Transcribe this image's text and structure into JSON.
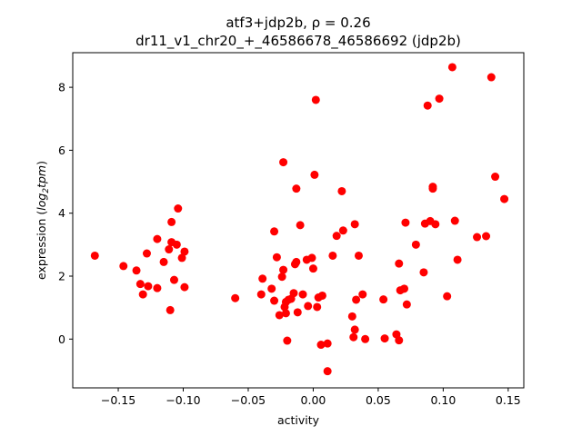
{
  "chart_data": {
    "type": "scatter",
    "title_line1": "atf3+jdp2b, ρ = 0.26",
    "title_line2": "dr11_v1_chr20_+_46586678_46586692 (jdp2b)",
    "xlabel": "activity",
    "ylabel_prefix": "expression (",
    "ylabel_italic": "log",
    "ylabel_sub": "2",
    "ylabel_italic2": "tpm",
    "ylabel_suffix": ")",
    "xlim": [
      -0.185,
      0.162
    ],
    "ylim": [
      -1.55,
      9.1
    ],
    "xticks": [
      -0.15,
      -0.1,
      -0.05,
      0.0,
      0.05,
      0.1,
      0.15
    ],
    "xtick_labels": [
      "−0.15",
      "−0.10",
      "−0.05",
      "0.00",
      "0.05",
      "0.10",
      "0.15"
    ],
    "yticks": [
      0,
      2,
      4,
      6,
      8
    ],
    "ytick_labels": [
      "0",
      "2",
      "4",
      "6",
      "8"
    ],
    "grid": false,
    "marker_color": "#ff0000",
    "series": [
      {
        "points": [
          [
            -0.168,
            2.65
          ],
          [
            -0.146,
            2.32
          ],
          [
            -0.136,
            2.18
          ],
          [
            -0.133,
            1.75
          ],
          [
            -0.131,
            1.42
          ],
          [
            -0.128,
            2.72
          ],
          [
            -0.127,
            1.68
          ],
          [
            -0.12,
            3.18
          ],
          [
            -0.12,
            1.62
          ],
          [
            -0.115,
            2.45
          ],
          [
            -0.111,
            2.85
          ],
          [
            -0.11,
            0.92
          ],
          [
            -0.109,
            3.08
          ],
          [
            -0.109,
            3.72
          ],
          [
            -0.107,
            1.88
          ],
          [
            -0.105,
            3.0
          ],
          [
            -0.104,
            4.15
          ],
          [
            -0.101,
            2.58
          ],
          [
            -0.099,
            2.78
          ],
          [
            -0.099,
            1.65
          ],
          [
            -0.06,
            1.3
          ],
          [
            -0.04,
            1.42
          ],
          [
            -0.039,
            1.92
          ],
          [
            -0.032,
            1.6
          ],
          [
            -0.03,
            3.42
          ],
          [
            -0.03,
            1.22
          ],
          [
            -0.028,
            2.6
          ],
          [
            -0.026,
            0.76
          ],
          [
            -0.024,
            1.98
          ],
          [
            -0.023,
            2.2
          ],
          [
            -0.023,
            5.62
          ],
          [
            -0.022,
            1.02
          ],
          [
            -0.021,
            0.82
          ],
          [
            -0.021,
            1.18
          ],
          [
            -0.02,
            -0.05
          ],
          [
            -0.019,
            1.25
          ],
          [
            -0.017,
            1.28
          ],
          [
            -0.015,
            1.46
          ],
          [
            -0.014,
            2.38
          ],
          [
            -0.013,
            4.78
          ],
          [
            -0.013,
            2.45
          ],
          [
            -0.012,
            0.85
          ],
          [
            -0.01,
            3.62
          ],
          [
            -0.008,
            1.42
          ],
          [
            -0.005,
            2.52
          ],
          [
            -0.004,
            1.05
          ],
          [
            -0.001,
            2.58
          ],
          [
            0.0,
            2.24
          ],
          [
            0.001,
            5.22
          ],
          [
            0.002,
            7.6
          ],
          [
            0.003,
            1.02
          ],
          [
            0.004,
            1.32
          ],
          [
            0.006,
            -0.18
          ],
          [
            0.007,
            1.38
          ],
          [
            0.011,
            -1.02
          ],
          [
            0.011,
            -0.14
          ],
          [
            0.015,
            2.65
          ],
          [
            0.018,
            3.28
          ],
          [
            0.022,
            4.7
          ],
          [
            0.023,
            3.45
          ],
          [
            0.03,
            0.72
          ],
          [
            0.031,
            0.06
          ],
          [
            0.032,
            0.3
          ],
          [
            0.032,
            3.65
          ],
          [
            0.033,
            1.25
          ],
          [
            0.035,
            2.65
          ],
          [
            0.038,
            1.42
          ],
          [
            0.04,
            0.0
          ],
          [
            0.054,
            1.26
          ],
          [
            0.055,
            0.02
          ],
          [
            0.064,
            0.15
          ],
          [
            0.066,
            -0.04
          ],
          [
            0.066,
            2.4
          ],
          [
            0.067,
            1.55
          ],
          [
            0.07,
            1.6
          ],
          [
            0.071,
            3.7
          ],
          [
            0.072,
            1.1
          ],
          [
            0.079,
            3.0
          ],
          [
            0.085,
            2.12
          ],
          [
            0.086,
            3.67
          ],
          [
            0.088,
            7.42
          ],
          [
            0.09,
            3.75
          ],
          [
            0.092,
            4.84
          ],
          [
            0.092,
            4.78
          ],
          [
            0.094,
            3.65
          ],
          [
            0.097,
            7.64
          ],
          [
            0.103,
            1.36
          ],
          [
            0.107,
            8.64
          ],
          [
            0.109,
            3.76
          ],
          [
            0.111,
            2.52
          ],
          [
            0.126,
            3.24
          ],
          [
            0.133,
            3.27
          ],
          [
            0.137,
            8.32
          ],
          [
            0.14,
            5.16
          ],
          [
            0.147,
            4.45
          ]
        ]
      }
    ]
  }
}
